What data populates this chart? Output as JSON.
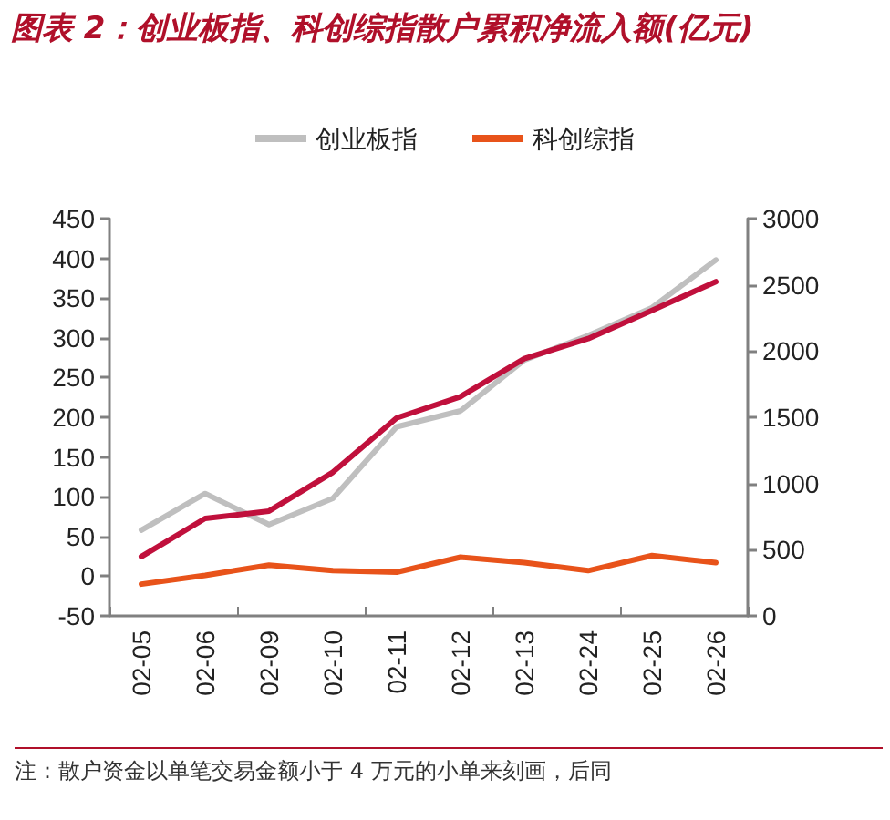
{
  "chart_data": {
    "type": "line",
    "title": "图表 2：创业板指、科创综指散户累积净流入额(亿元)",
    "categories": [
      "02-05",
      "02-06",
      "02-09",
      "02-10",
      "02-11",
      "02-12",
      "02-13",
      "02-24",
      "02-25",
      "02-26"
    ],
    "series": [
      {
        "name": "创业板指",
        "color": "#bfbfbf",
        "values": [
          58,
          104,
          65,
          98,
          188,
          208,
          272,
          303,
          338,
          398
        ]
      },
      {
        "name": "科创综指",
        "color": "#e8531a",
        "values": [
          -10,
          1,
          14,
          7,
          5,
          24,
          17,
          7,
          26,
          17
        ]
      },
      {
        "color": "#c0103c",
        "axis": "y2",
        "values": [
          448,
          736,
          792,
          1085,
          1495,
          1656,
          1943,
          2094,
          2307,
          2524
        ]
      }
    ],
    "ylim": [
      -50,
      450
    ],
    "yticks": [
      -50,
      0,
      50,
      100,
      150,
      200,
      250,
      300,
      350,
      400,
      450
    ],
    "y2lim": [
      0,
      3000
    ],
    "y2ticks": [
      0,
      500,
      1000,
      1500,
      2000,
      2500,
      3000
    ],
    "grid": false,
    "legend": "top",
    "marker": "none",
    "line_style": "solid",
    "annotations": [
      "注：散户资金以单笔交易金额小于 4 万元的小单来刻画，后同"
    ]
  }
}
